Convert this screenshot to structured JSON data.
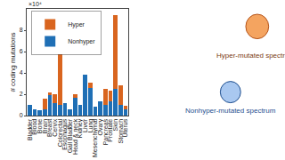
{
  "chart_data": {
    "type": "bar",
    "stacked": true,
    "y_label": "# coding mutations",
    "categories": [
      "Bladder",
      "Blood",
      "Bone",
      "Brain",
      "Breast",
      "Cervix",
      "Colorectal",
      "Esophagus",
      "Gall Bladder",
      "Head & neck",
      "Kidney",
      "Liver",
      "Lung",
      "Mesenchymal",
      "Ovary",
      "Pancreas",
      "Prostate",
      "Skin",
      "Stomach",
      "Uterus"
    ],
    "series": [
      {
        "name": "Nonhyper",
        "color": "#1f6fb5",
        "values": [
          1.0,
          0.6,
          0.5,
          0.6,
          1.9,
          1.2,
          1.0,
          1.2,
          0.6,
          1.7,
          1.0,
          3.8,
          2.6,
          0.8,
          1.3,
          1.0,
          1.3,
          2.5,
          1.0,
          0.6
        ]
      },
      {
        "name": "Hyper",
        "color": "#d9651f",
        "values": [
          0,
          0,
          0,
          1.0,
          0.3,
          0.8,
          4.9,
          0,
          0,
          0.3,
          0,
          0,
          0.5,
          0,
          0,
          1.5,
          1.0,
          6.9,
          1.8,
          0.3
        ]
      }
    ],
    "ylim": [
      0,
      10
    ],
    "yticks": [
      0,
      2,
      4,
      6,
      8
    ],
    "legend": "top-left",
    "grid": false,
    "annotations": [
      "×10⁴",
      "Hyper-mutated spectrum",
      "Nonhyper-mutated spectrum"
    ]
  }
}
